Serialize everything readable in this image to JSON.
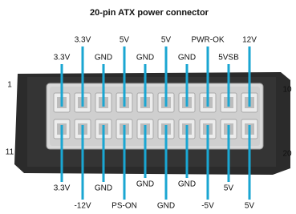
{
  "title": "20-pin ATX power connector",
  "top_labels": [
    "3.3V",
    "3.3V",
    "GND",
    "5V",
    "GND",
    "5V",
    "GND",
    "PWR-OK",
    "5VSB",
    "12V"
  ],
  "bottom_labels": [
    "3.3V",
    "-12V",
    "GND",
    "PS-ON",
    "GND",
    "GND",
    "GND",
    "-5V",
    "5V",
    "5V"
  ],
  "pin_numbers": {
    "top_left": "1",
    "top_right": "10",
    "bottom_left": "11",
    "bottom_right": "20"
  }
}
